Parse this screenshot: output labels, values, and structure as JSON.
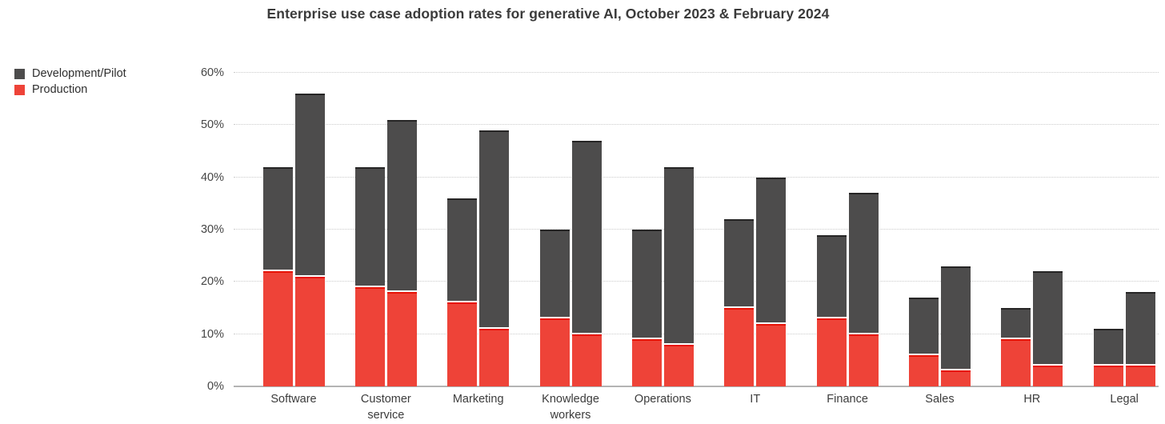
{
  "title": "Enterprise use case adoption rates for generative AI, October 2023 & February 2024",
  "legend": {
    "items": [
      {
        "label": "Development/Pilot",
        "color": "#4d4c4c"
      },
      {
        "label": "Production",
        "color": "#ee4338"
      }
    ]
  },
  "chart_data": {
    "type": "bar",
    "subtype": "grouped-stacked",
    "title": "Enterprise use case adoption rates for generative AI, October 2023 & February 2024",
    "categories": [
      {
        "name": "Software",
        "lines": [
          "Software"
        ]
      },
      {
        "name": "Customer service",
        "lines": [
          "Customer",
          "service"
        ]
      },
      {
        "name": "Marketing",
        "lines": [
          "Marketing"
        ]
      },
      {
        "name": "Knowledge workers",
        "lines": [
          "Knowledge",
          "workers"
        ]
      },
      {
        "name": "Operations",
        "lines": [
          "Operations"
        ]
      },
      {
        "name": "IT",
        "lines": [
          "IT"
        ]
      },
      {
        "name": "Finance",
        "lines": [
          "Finance"
        ]
      },
      {
        "name": "Sales",
        "lines": [
          "Sales"
        ]
      },
      {
        "name": "HR",
        "lines": [
          "HR"
        ]
      },
      {
        "name": "Legal",
        "lines": [
          "Legal"
        ]
      }
    ],
    "groups": [
      "October 2023",
      "February 2024"
    ],
    "stack_order_bottom_to_top": [
      "Production",
      "Development/Pilot"
    ],
    "series": [
      {
        "group": "October 2023",
        "production": [
          22,
          19,
          16,
          13,
          9,
          15,
          13,
          6,
          9,
          4
        ],
        "development_pilot": [
          20,
          23,
          20,
          17,
          21,
          17,
          16,
          11,
          6,
          7
        ],
        "total": [
          42,
          42,
          36,
          30,
          30,
          32,
          29,
          17,
          15,
          11
        ]
      },
      {
        "group": "February 2024",
        "production": [
          21,
          18,
          11,
          10,
          8,
          12,
          10,
          3,
          4,
          4
        ],
        "development_pilot": [
          35,
          33,
          38,
          37,
          34,
          28,
          27,
          20,
          18,
          14
        ],
        "total": [
          56,
          51,
          49,
          47,
          42,
          40,
          37,
          23,
          22,
          18
        ]
      }
    ],
    "ylim": [
      0,
      60
    ],
    "ytick_values": [
      0,
      10,
      20,
      30,
      40,
      50,
      60
    ],
    "ytick_labels": [
      "0%",
      "10%",
      "20%",
      "30%",
      "40%",
      "50%",
      "60%"
    ],
    "grid": "horizontal-dotted",
    "legend_position": "top-left",
    "colors": {
      "development_pilot": "#4d4c4c",
      "production": "#ee4338"
    }
  }
}
